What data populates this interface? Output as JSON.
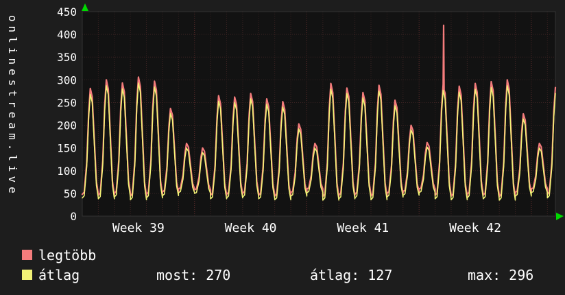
{
  "title_vertical": "onlinestream.live",
  "colors": {
    "bg": "#1d1d1d",
    "plot_bg": "#121212",
    "grid_minor": "#3a2222",
    "grid_major": "#5c2b2b",
    "frame": "#333333",
    "text": "#ffffff",
    "legtobb": "#f47c7c",
    "atlag": "#f2f276",
    "arrow": "#00d800"
  },
  "legend": {
    "items": [
      {
        "label": "legtöbb",
        "color_key": "legtobb"
      },
      {
        "label": "átlag",
        "color_key": "atlag"
      }
    ]
  },
  "stats": {
    "items": [
      {
        "label": "most:",
        "value": "270"
      },
      {
        "label": "átlag:",
        "value": "127"
      },
      {
        "label": "max:",
        "value": "296"
      }
    ]
  },
  "chart_data": {
    "type": "line",
    "title": "",
    "xlabel": "",
    "ylabel": "",
    "ylim": [
      0,
      450
    ],
    "ytick_step": 50,
    "ytick_labels": [
      "0",
      "50",
      "100",
      "150",
      "200",
      "250",
      "300",
      "350",
      "400",
      "450"
    ],
    "xlabel_ticks": [
      "Week 39",
      "Week 40",
      "Week 41",
      "Week 42"
    ],
    "week_label_day_centers": [
      3.5,
      10.5,
      17.5,
      24.5
    ],
    "days": 30,
    "x_domain_days": 29.5,
    "grid": true,
    "legend_position": "bottom-left",
    "day_shape": [
      [
        0,
        0
      ],
      [
        0.12,
        0.02
      ],
      [
        0.28,
        0.3
      ],
      [
        0.4,
        0.78
      ],
      [
        0.5,
        1.0
      ],
      [
        0.62,
        0.92
      ],
      [
        0.74,
        0.55
      ],
      [
        0.88,
        0.12
      ],
      [
        1,
        0
      ]
    ],
    "series": [
      {
        "name": "legtöbb",
        "color_key": "legtobb",
        "daily_peaks": [
          281,
          300,
          293,
          306,
          297,
          237,
          160,
          150,
          265,
          262,
          270,
          258,
          252,
          203,
          160,
          292,
          282,
          272,
          288,
          255,
          200,
          162,
          290,
          286,
          292,
          296,
          300,
          225,
          160,
          283
        ],
        "daily_mins": [
          48,
          46,
          50,
          44,
          48,
          53,
          60,
          58,
          46,
          48,
          50,
          46,
          44,
          52,
          60,
          43,
          46,
          48,
          44,
          50,
          54,
          60,
          46,
          44,
          48,
          46,
          43,
          52,
          60,
          48
        ],
        "spike": {
          "day": 22,
          "value": 420
        }
      },
      {
        "name": "átlag",
        "color_key": "atlag",
        "daily_peaks": [
          268,
          287,
          280,
          293,
          284,
          226,
          150,
          140,
          253,
          250,
          258,
          246,
          240,
          192,
          150,
          279,
          270,
          260,
          275,
          243,
          190,
          152,
          277,
          273,
          279,
          283,
          287,
          214,
          150,
          270
        ],
        "daily_mins": [
          40,
          38,
          42,
          36,
          40,
          45,
          52,
          50,
          38,
          40,
          42,
          38,
          36,
          44,
          52,
          35,
          38,
          40,
          36,
          42,
          46,
          52,
          38,
          36,
          40,
          38,
          35,
          44,
          52,
          40
        ]
      }
    ]
  }
}
